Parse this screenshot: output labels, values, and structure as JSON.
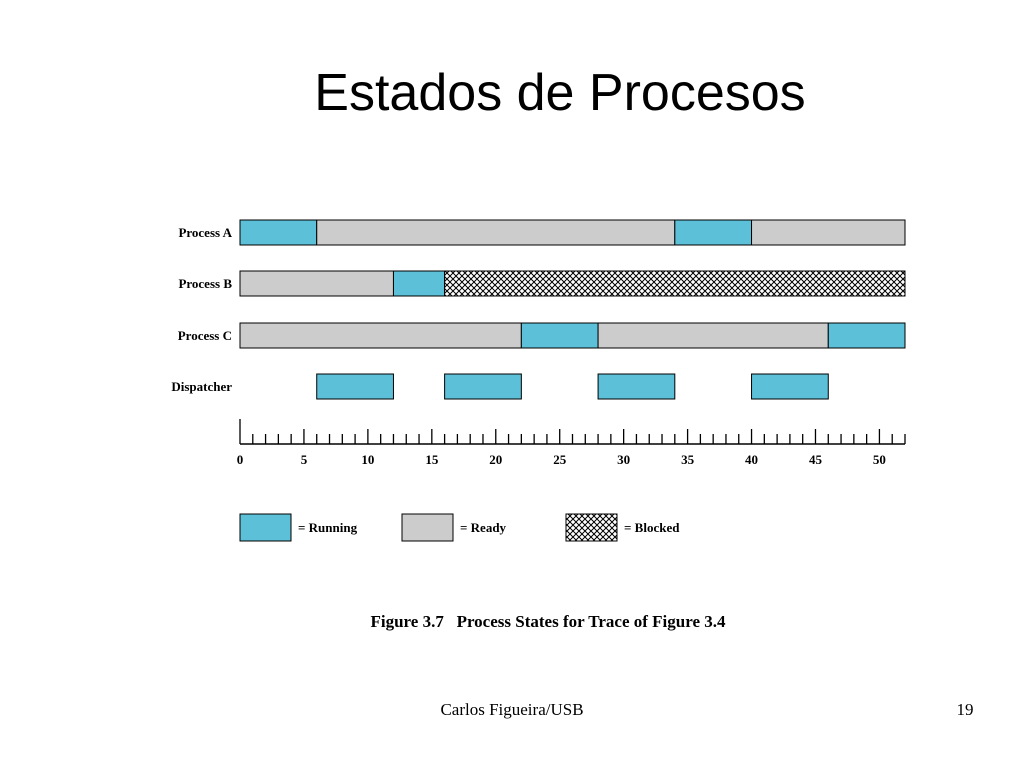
{
  "slide": {
    "title": "Estados de Procesos",
    "footer_author": "Carlos Figueira/USB",
    "page_number": "19"
  },
  "chart_data": {
    "type": "gantt",
    "caption": "Figure 3.7   Process States for Trace of Figure 3.4",
    "xlim": [
      0,
      52
    ],
    "x_ticks_major": [
      0,
      5,
      10,
      15,
      20,
      25,
      30,
      35,
      40,
      45,
      50
    ],
    "x_tick_minor_step": 1,
    "colors": {
      "running": "#5bc0d8",
      "ready": "#cccccc",
      "blocked": "#ffffff"
    },
    "rows": [
      {
        "label": "Process A",
        "segments": [
          {
            "start": 0,
            "end": 6,
            "state": "running"
          },
          {
            "start": 6,
            "end": 34,
            "state": "ready"
          },
          {
            "start": 34,
            "end": 40,
            "state": "running"
          },
          {
            "start": 40,
            "end": 52,
            "state": "ready"
          }
        ]
      },
      {
        "label": "Process B",
        "segments": [
          {
            "start": 0,
            "end": 12,
            "state": "ready"
          },
          {
            "start": 12,
            "end": 16,
            "state": "running"
          },
          {
            "start": 16,
            "end": 52,
            "state": "blocked"
          }
        ]
      },
      {
        "label": "Process C",
        "segments": [
          {
            "start": 0,
            "end": 22,
            "state": "ready"
          },
          {
            "start": 22,
            "end": 28,
            "state": "running"
          },
          {
            "start": 28,
            "end": 46,
            "state": "ready"
          },
          {
            "start": 46,
            "end": 52,
            "state": "running"
          }
        ]
      },
      {
        "label": "Dispatcher",
        "segments": [
          {
            "start": 6,
            "end": 12,
            "state": "running"
          },
          {
            "start": 16,
            "end": 22,
            "state": "running"
          },
          {
            "start": 28,
            "end": 34,
            "state": "running"
          },
          {
            "start": 40,
            "end": 46,
            "state": "running"
          }
        ]
      }
    ],
    "legend": [
      {
        "state": "running",
        "label": "= Running"
      },
      {
        "state": "ready",
        "label": "= Ready"
      },
      {
        "state": "blocked",
        "label": "= Blocked"
      }
    ]
  }
}
